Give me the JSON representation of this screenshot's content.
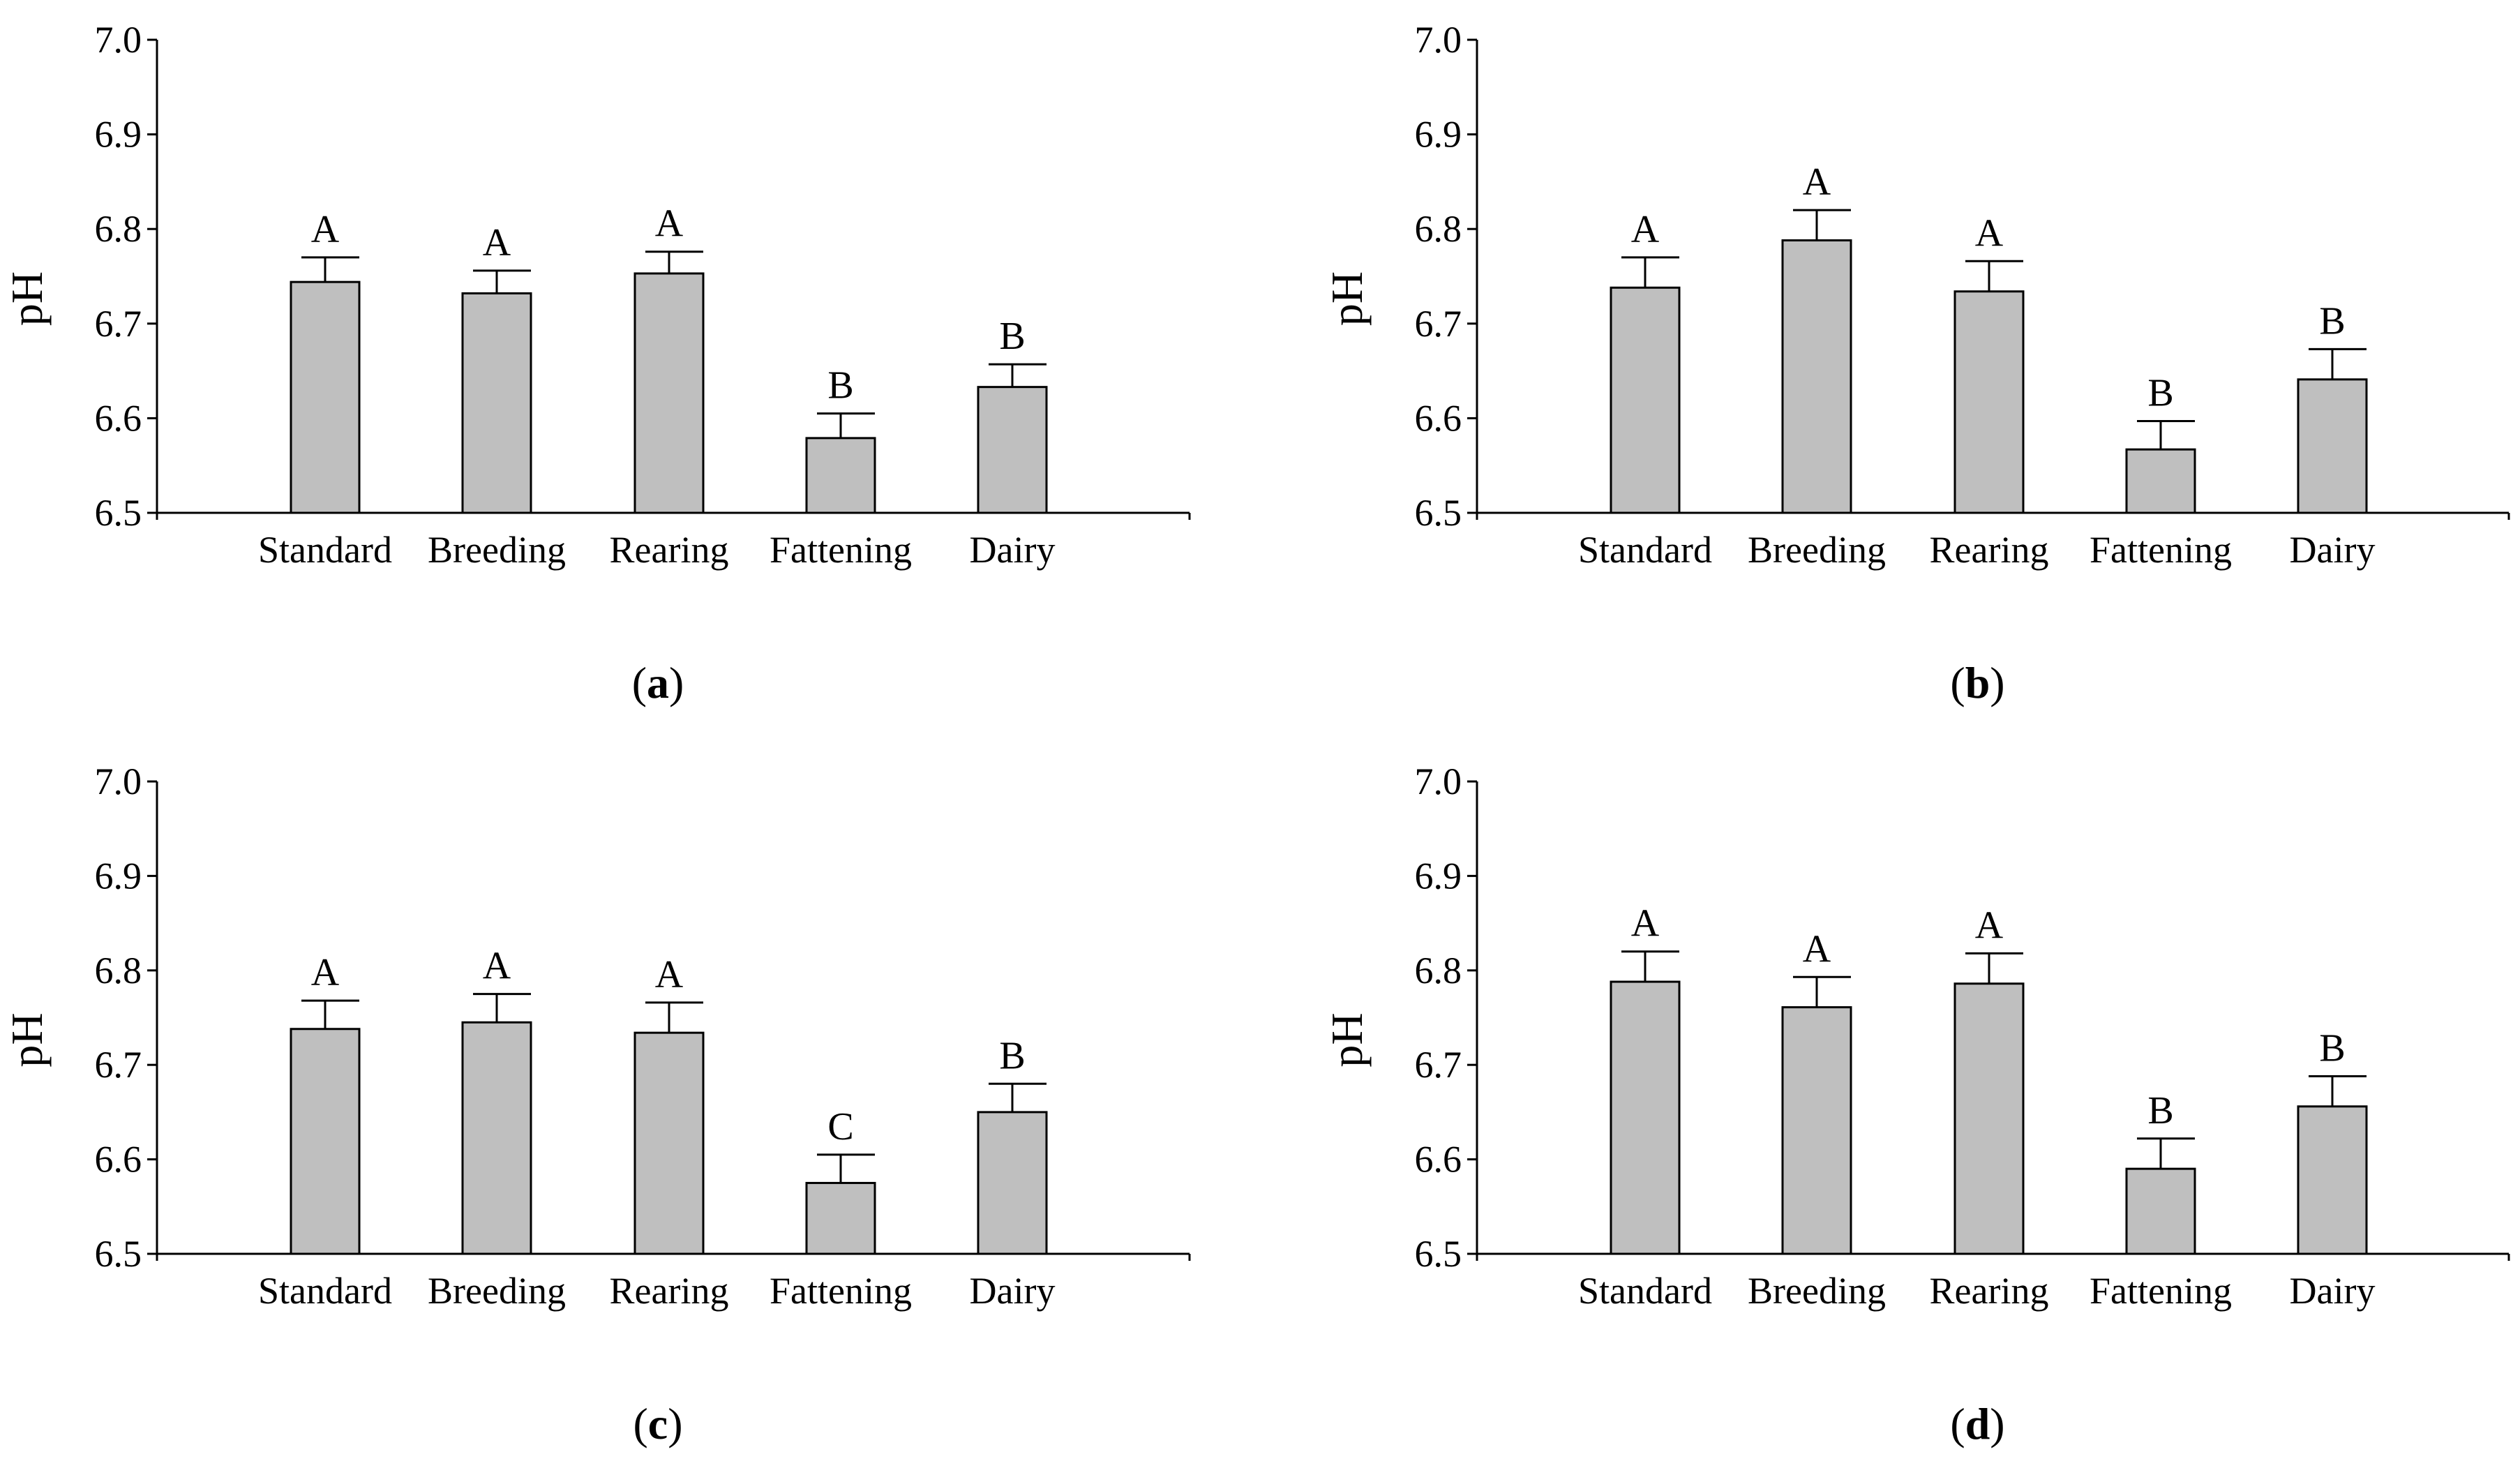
{
  "chart_data": [
    {
      "type": "bar",
      "panel": "a",
      "categories": [
        "Standard",
        "Breeding",
        "Rearing",
        "Fattening",
        "Dairy"
      ],
      "values": [
        6.744,
        6.732,
        6.753,
        6.579,
        6.633
      ],
      "errors": [
        0.026,
        0.024,
        0.023,
        0.026,
        0.024
      ],
      "significance": [
        "A",
        "A",
        "A",
        "B",
        "B"
      ],
      "ylabel": "pH",
      "ylim": [
        6.5,
        7.0
      ],
      "yticks": [
        "6.5",
        "6.6",
        "6.7",
        "6.8",
        "6.9",
        "7.0"
      ]
    },
    {
      "type": "bar",
      "panel": "b",
      "categories": [
        "Standard",
        "Breeding",
        "Rearing",
        "Fattening",
        "Dairy"
      ],
      "values": [
        6.738,
        6.788,
        6.734,
        6.567,
        6.641
      ],
      "errors": [
        0.032,
        0.032,
        0.032,
        0.03,
        0.032
      ],
      "significance": [
        "A",
        "A",
        "A",
        "B",
        "B"
      ],
      "ylabel": "pH",
      "ylim": [
        6.5,
        7.0
      ],
      "yticks": [
        "6.5",
        "6.6",
        "6.7",
        "6.8",
        "6.9",
        "7.0"
      ]
    },
    {
      "type": "bar",
      "panel": "c",
      "categories": [
        "Standard",
        "Breeding",
        "Rearing",
        "Fattening",
        "Dairy"
      ],
      "values": [
        6.738,
        6.745,
        6.734,
        6.575,
        6.65
      ],
      "errors": [
        0.03,
        0.03,
        0.032,
        0.03,
        0.03
      ],
      "significance": [
        "A",
        "A",
        "A",
        "C",
        "B"
      ],
      "ylabel": "pH",
      "ylim": [
        6.5,
        7.0
      ],
      "yticks": [
        "6.5",
        "6.6",
        "6.7",
        "6.8",
        "6.9",
        "7.0"
      ]
    },
    {
      "type": "bar",
      "panel": "d",
      "categories": [
        "Standard",
        "Breeding",
        "Rearing",
        "Fattening",
        "Dairy"
      ],
      "values": [
        6.788,
        6.761,
        6.786,
        6.59,
        6.656
      ],
      "errors": [
        0.032,
        0.032,
        0.032,
        0.032,
        0.032
      ],
      "significance": [
        "A",
        "A",
        "A",
        "B",
        "B"
      ],
      "ylabel": "pH",
      "ylim": [
        6.5,
        7.0
      ],
      "yticks": [
        "6.5",
        "6.6",
        "6.7",
        "6.8",
        "6.9",
        "7.0"
      ]
    }
  ]
}
